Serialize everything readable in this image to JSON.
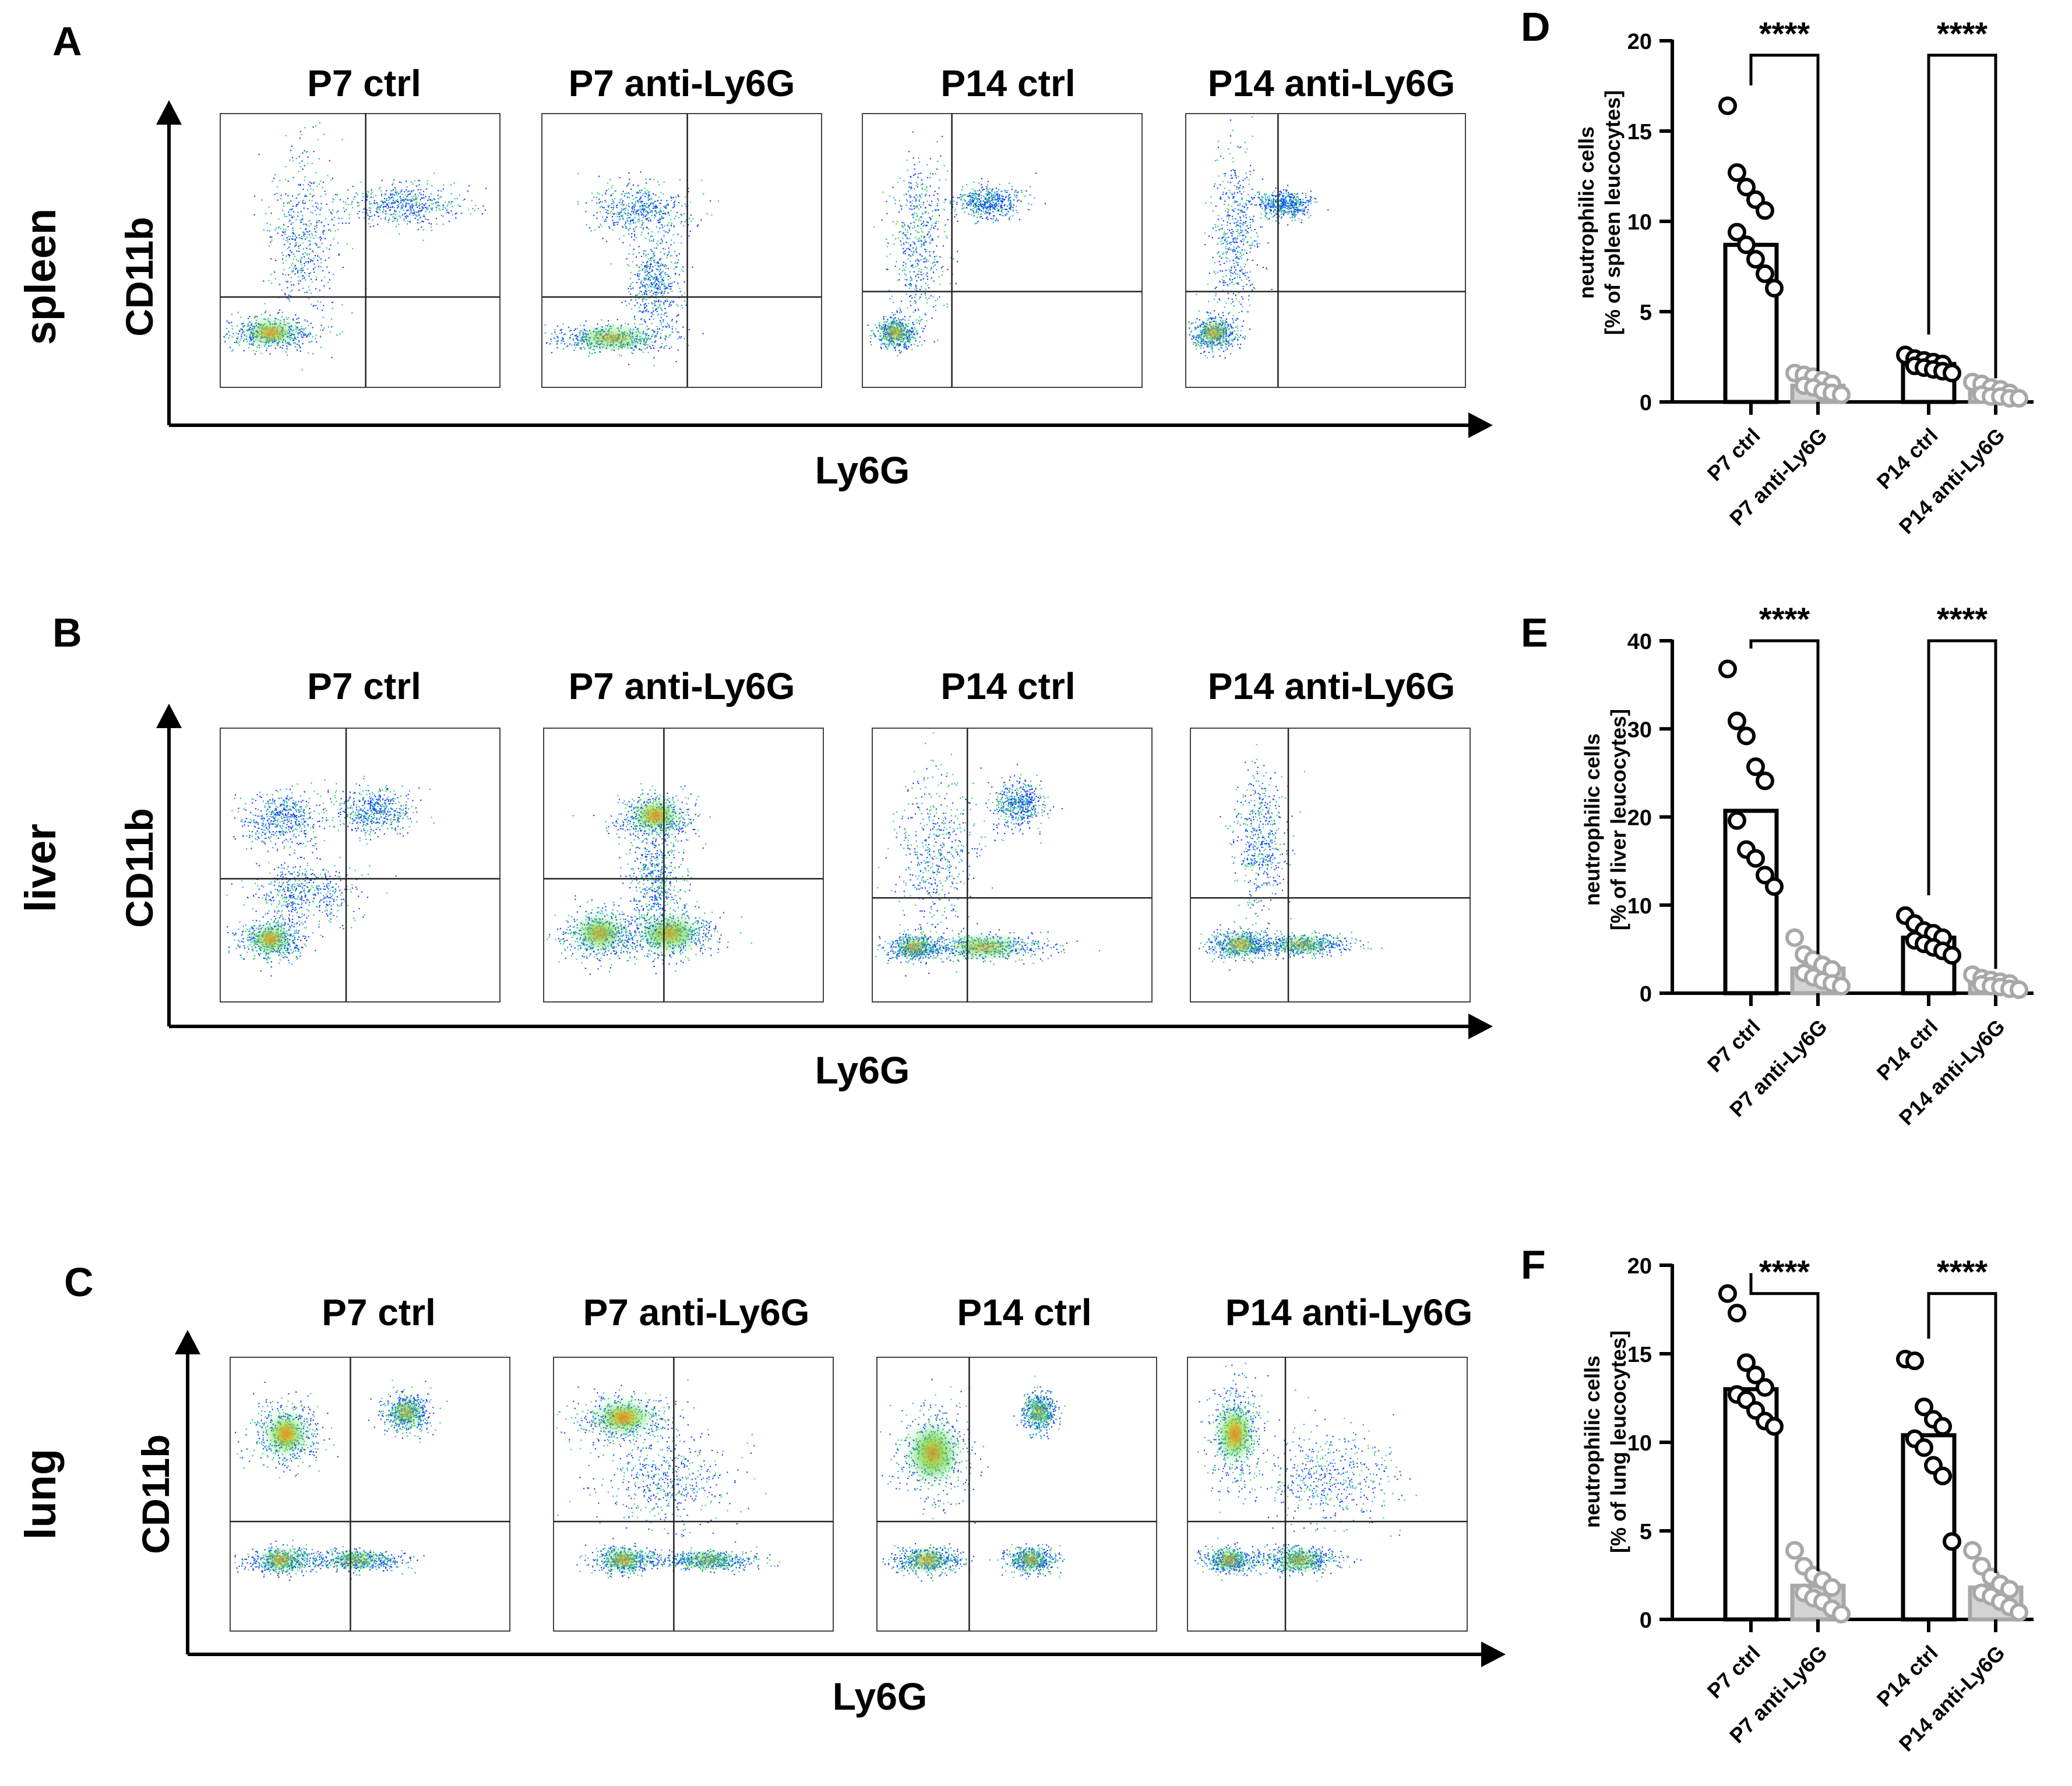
{
  "flow_panels": [
    {
      "label": "A",
      "organ": "spleen",
      "titles": [
        "P7 ctrl",
        "P7 anti-Ly6G",
        "P14 ctrl",
        "P14 anti-Ly6G"
      ],
      "x_axis_label": "Ly6G",
      "y_axis_label": "CD11b"
    },
    {
      "label": "B",
      "organ": "liver",
      "titles": [
        "P7 ctrl",
        "P7 anti-Ly6G",
        "P14 ctrl",
        "P14 anti-Ly6G"
      ],
      "x_axis_label": "Ly6G",
      "y_axis_label": "CD11b"
    },
    {
      "label": "C",
      "organ": "lung",
      "titles": [
        "P7 ctrl",
        "P7 anti-Ly6G",
        "P14 ctrl",
        "P14 anti-Ly6G"
      ],
      "x_axis_label": "Ly6G",
      "y_axis_label": "CD11b"
    }
  ],
  "chart_data": [
    {
      "type": "bar",
      "panel": "D",
      "ylabel_line1": "neutrophilic cells",
      "ylabel_line2": "[% of spleen leucocytes]",
      "ylim": [
        0,
        20
      ],
      "yticks": [
        0,
        5,
        10,
        15,
        20
      ],
      "categories": [
        "P7 ctrl",
        "P7 anti-Ly6G",
        "P14 ctrl",
        "P14 anti-Ly6G"
      ],
      "values": [
        8.7,
        0.9,
        2.1,
        0.5
      ],
      "points": [
        [
          16.4,
          12.7,
          11.9,
          11.2,
          10.6,
          9.4,
          8.7,
          7.9,
          7.1,
          6.3
        ],
        [
          1.6,
          1.5,
          1.4,
          1.2,
          1.0,
          0.9,
          0.8,
          0.6,
          0.5,
          0.4
        ],
        [
          2.6,
          2.4,
          2.3,
          2.2,
          2.1,
          2.0,
          1.9,
          1.8,
          1.7,
          1.6
        ],
        [
          1.1,
          1.0,
          0.8,
          0.7,
          0.5,
          0.4,
          0.3,
          0.3,
          0.2,
          0.2
        ]
      ],
      "significance": [
        {
          "groups": [
            0,
            1
          ],
          "label": "****"
        },
        {
          "groups": [
            2,
            3
          ],
          "label": "****"
        }
      ]
    },
    {
      "type": "bar",
      "panel": "E",
      "ylabel_line1": "neutrophilic cells",
      "ylabel_line2": "[% of liver leucocytes]",
      "ylim": [
        0,
        40
      ],
      "yticks": [
        0,
        10,
        20,
        30,
        40
      ],
      "categories": [
        "P7 ctrl",
        "P7 anti-Ly6G",
        "P14 ctrl",
        "P14 anti-Ly6G"
      ],
      "values": [
        20.7,
        2.8,
        6.3,
        1.1
      ],
      "points": [
        [
          36.8,
          30.9,
          29.2,
          25.7,
          24.1,
          19.6,
          16.3,
          15.3,
          13.4,
          12.1
        ],
        [
          6.3,
          4.4,
          3.8,
          3.2,
          2.7,
          2.3,
          1.8,
          1.4,
          1.1,
          0.8
        ],
        [
          8.8,
          7.9,
          7.1,
          6.8,
          6.3,
          6.0,
          5.6,
          5.2,
          4.8,
          4.3
        ],
        [
          2.1,
          1.7,
          1.5,
          1.3,
          1.1,
          1.0,
          0.8,
          0.7,
          0.5,
          0.4
        ]
      ],
      "significance": [
        {
          "groups": [
            0,
            1
          ],
          "label": "****"
        },
        {
          "groups": [
            2,
            3
          ],
          "label": "****"
        }
      ]
    },
    {
      "type": "bar",
      "panel": "F",
      "ylabel_line1": "neutrophilic cells",
      "ylabel_line2": "[% of lung leucocytes]",
      "ylim": [
        0,
        20
      ],
      "yticks": [
        0,
        5,
        10,
        15,
        20
      ],
      "categories": [
        "P7 ctrl",
        "P7 anti-Ly6G",
        "P14 ctrl",
        "P14 anti-Ly6G"
      ],
      "values": [
        13.0,
        1.9,
        10.4,
        1.8
      ],
      "points": [
        [
          18.4,
          17.3,
          14.5,
          13.8,
          13.1,
          12.7,
          12.4,
          11.8,
          11.2,
          10.9
        ],
        [
          3.9,
          3.0,
          2.5,
          2.2,
          1.8,
          1.5,
          1.2,
          1.0,
          0.6,
          0.3
        ],
        [
          14.7,
          14.6,
          12.0,
          11.3,
          10.9,
          10.2,
          9.7,
          8.7,
          8.1,
          4.4
        ],
        [
          3.9,
          3.0,
          2.4,
          2.0,
          1.7,
          1.5,
          1.3,
          1.0,
          0.7,
          0.4
        ]
      ],
      "significance": [
        {
          "groups": [
            0,
            1
          ],
          "label": "****"
        },
        {
          "groups": [
            2,
            3
          ],
          "label": "****"
        }
      ]
    }
  ]
}
